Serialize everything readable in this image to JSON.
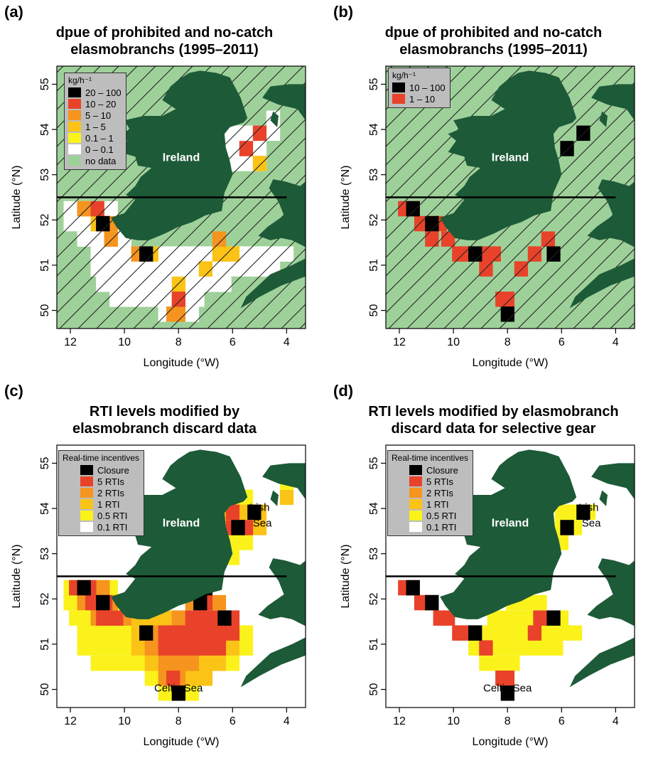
{
  "panels": [
    {
      "label": "(a)",
      "title_lines": [
        "dpue of prohibited and no-catch",
        "elasmobranchs (1995–2011)"
      ],
      "legend_title": "kg/h⁻¹",
      "legend_items": [
        {
          "label": "20 – 100",
          "color": "#000000"
        },
        {
          "label": "10 – 20",
          "color": "#e8432a"
        },
        {
          "label": "5 – 10",
          "color": "#f5941e"
        },
        {
          "label": "1 – 5",
          "color": "#fbc316"
        },
        {
          "label": "0.1 – 1",
          "color": "#fbf21c"
        },
        {
          "label": "0 – 0.1",
          "color": "#ffffff"
        },
        {
          "label": "no data",
          "color": "#9ed19a"
        }
      ],
      "place_labels": [
        {
          "text": "Ireland",
          "lon": 7.9,
          "lat": 53.3
        }
      ]
    },
    {
      "label": "(b)",
      "title_lines": [
        "dpue of prohibited and no-catch",
        "elasmobranchs (1995–2011)"
      ],
      "legend_title": "kg/h⁻¹",
      "legend_items": [
        {
          "label": "10 – 100",
          "color": "#000000"
        },
        {
          "label": "1 – 10",
          "color": "#e8432a"
        }
      ],
      "place_labels": [
        {
          "text": "Ireland",
          "lon": 7.9,
          "lat": 53.3
        }
      ]
    },
    {
      "label": "(c)",
      "title_lines": [
        "RTI levels modified by",
        "elasmobranch discard data"
      ],
      "legend_title": "Real-time incentives",
      "legend_items": [
        {
          "label": "Closure",
          "color": "#000000"
        },
        {
          "label": "5 RTIs",
          "color": "#e8432a"
        },
        {
          "label": "2 RTIs",
          "color": "#f5941e"
        },
        {
          "label": "1 RTI",
          "color": "#fbc316"
        },
        {
          "label": "0.5 RTI",
          "color": "#fbf21c"
        },
        {
          "label": "0.1 RTI",
          "color": "#ffffff"
        }
      ],
      "place_labels": [
        {
          "text": "Ireland",
          "lon": 7.9,
          "lat": 53.6
        },
        {
          "text": "Irish",
          "lon": 5.0,
          "lat": 53.95
        },
        {
          "text": "Sea",
          "lon": 4.9,
          "lat": 53.6
        },
        {
          "text": "Celtic Sea",
          "lon": 8.0,
          "lat": 49.95
        }
      ]
    },
    {
      "label": "(d)",
      "title_lines": [
        "RTI levels modified by elasmobranch",
        "discard data for selective gear"
      ],
      "legend_title": "Real-time incentives",
      "legend_items": [
        {
          "label": "Closure",
          "color": "#000000"
        },
        {
          "label": "5 RTIs",
          "color": "#e8432a"
        },
        {
          "label": "2 RTIs",
          "color": "#f5941e"
        },
        {
          "label": "1 RTI",
          "color": "#fbc316"
        },
        {
          "label": "0.5 RTI",
          "color": "#fbf21c"
        },
        {
          "label": "0.1 RTI",
          "color": "#ffffff"
        }
      ],
      "place_labels": [
        {
          "text": "Ireland",
          "lon": 7.9,
          "lat": 53.6
        },
        {
          "text": "Irish",
          "lon": 5.0,
          "lat": 53.95
        },
        {
          "text": "Sea",
          "lon": 4.9,
          "lat": 53.6
        },
        {
          "text": "Celtic Sea",
          "lon": 8.0,
          "lat": 49.95
        }
      ]
    }
  ],
  "axes": {
    "xlabel": "Longitude (°W)",
    "ylabel": "Latitude (°N)",
    "x_ticks": [
      12,
      10,
      8,
      6,
      4
    ],
    "y_ticks": [
      50,
      51,
      52,
      53,
      54,
      55
    ],
    "xlim": [
      12.5,
      3.3
    ],
    "ylim": [
      49.6,
      55.4
    ],
    "divider_lat": 52.5
  },
  "colors": {
    "land": "#1d5a38",
    "no_data": "#9ed19a",
    "black": "#000000",
    "red": "#e8432a",
    "orange": "#f5941e",
    "amber": "#fbc316",
    "yellow": "#fbf21c",
    "white": "#ffffff"
  }
}
